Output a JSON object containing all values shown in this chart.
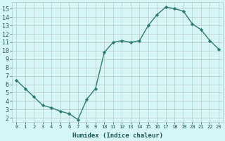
{
  "x": [
    0,
    1,
    2,
    3,
    4,
    5,
    6,
    7,
    8,
    9,
    10,
    11,
    12,
    13,
    14,
    15,
    16,
    17,
    18,
    19,
    20,
    21,
    22,
    23
  ],
  "y": [
    6.5,
    5.5,
    4.5,
    3.5,
    3.2,
    2.8,
    2.5,
    1.8,
    4.2,
    5.5,
    9.8,
    11.0,
    11.2,
    11.0,
    11.2,
    13.0,
    14.3,
    15.2,
    15.0,
    14.7,
    13.2,
    12.5,
    11.2,
    10.2
  ],
  "line_color": "#2e7d6e",
  "marker": "D",
  "marker_size": 2.2,
  "bg_color": "#d6f5f5",
  "grid_color": "#b8c8c8",
  "xlabel": "Humidex (Indice chaleur)",
  "ylabel_ticks": [
    2,
    3,
    4,
    5,
    6,
    7,
    8,
    9,
    10,
    11,
    12,
    13,
    14,
    15
  ],
  "xlim": [
    -0.5,
    23.5
  ],
  "ylim": [
    1.5,
    15.8
  ],
  "xlabel_color": "#1a5555",
  "tick_color": "#1a5555",
  "linewidth": 1.0,
  "tick_fontsize_x": 5.0,
  "tick_fontsize_y": 6.0,
  "xlabel_fontsize": 6.5
}
